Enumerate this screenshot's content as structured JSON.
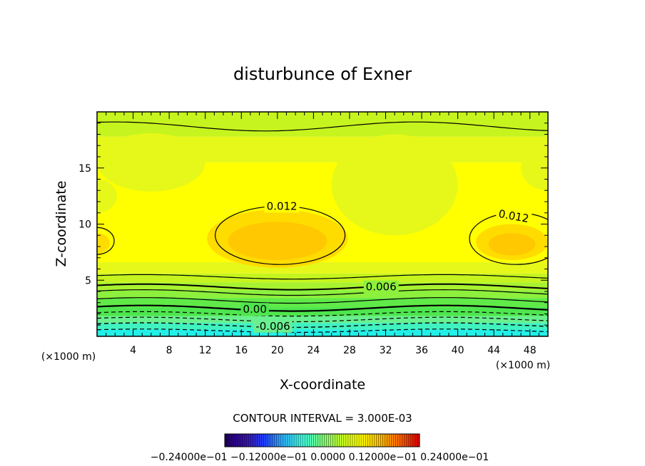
{
  "chart_data": {
    "type": "heatmap",
    "title": "disturbunce of Exner",
    "xlabel": "X-coordinate",
    "ylabel": "Z-coordinate",
    "x_unit": "(×1000 m)",
    "y_unit": "(×1000 m)",
    "xlim": [
      0,
      50
    ],
    "ylim": [
      0,
      20
    ],
    "x_ticks": [
      4,
      8,
      12,
      16,
      20,
      24,
      28,
      32,
      36,
      40,
      44,
      48
    ],
    "y_ticks": [
      5,
      10,
      15
    ],
    "contour_interval_text": "CONTOUR INTERVAL = 3.000E-03",
    "contour_labels": [
      {
        "text": "0.012",
        "x": 20.5,
        "z": 11.6,
        "angle": 0
      },
      {
        "text": "0.012",
        "x": 46.2,
        "z": 10.7,
        "angle": 10
      },
      {
        "text": "0.006",
        "x": 31.5,
        "z": 4.4,
        "angle": 0
      },
      {
        "text": "0.00",
        "x": 17.5,
        "z": 2.4,
        "angle": 0
      },
      {
        "text": "-0.006",
        "x": 19.5,
        "z": 0.9,
        "angle": 0
      }
    ],
    "colorbar": {
      "min": -0.024,
      "max": 0.024,
      "tick_labels_text": "−0.24000e−01  −0.12000e−01  0.0000  0.12000e−01  0.24000e−01",
      "colors": [
        "#1e0060",
        "#3b10b0",
        "#2040ff",
        "#2fb8ff",
        "#40ffe0",
        "#7cff7c",
        "#c8ff2a",
        "#ffff00",
        "#ffc000",
        "#ff6a00",
        "#e80000"
      ]
    },
    "field_colors": {
      "cyan": "#22f0e8",
      "aqua": "#40f2c0",
      "mint": "#6af090",
      "green": "#4ee64e",
      "lime": "#8cf03c",
      "yellowgreen": "#c6f41e",
      "lightyellow": "#e6f81a",
      "yellow": "#ffff00",
      "gold": "#ffdc00",
      "orange": "#ffc800"
    }
  }
}
